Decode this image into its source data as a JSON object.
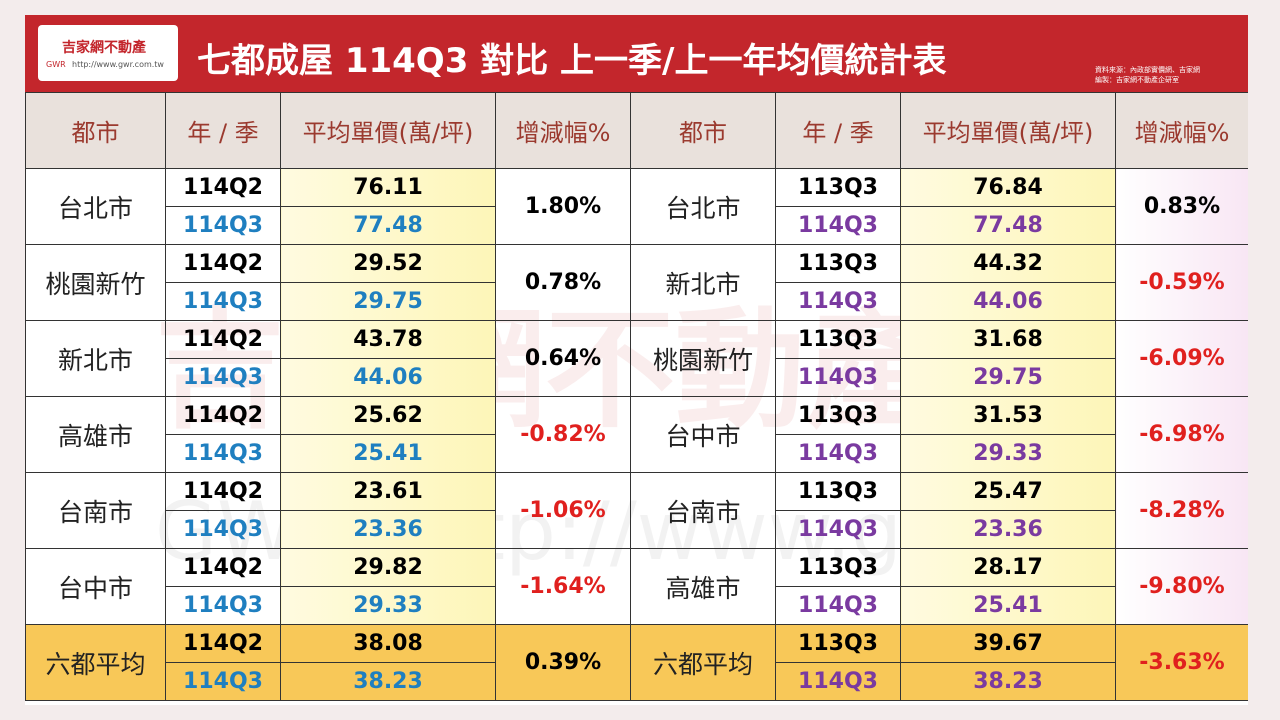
{
  "header": {
    "logo": {
      "name": "吉家網不動產",
      "mark": "GWR",
      "url": "http://www.gwr.com.tw"
    },
    "title": "七都成屋 114Q3 對比 上一季/上一年均價統計表",
    "source": [
      "資料來源：內政部實價網、吉家網",
      "編製：吉家網不動產企研室"
    ]
  },
  "watermark": {
    "name": "吉家網不動產",
    "mark": "GWR",
    "url": "http://www.gwr.com.tw"
  },
  "table": {
    "columns": [
      "都市",
      "年 / 季",
      "平均單價(萬/坪)",
      "增減幅%",
      "都市",
      "年 / 季",
      "平均單價(萬/坪)",
      "增減幅%"
    ],
    "rows": [
      {
        "left": {
          "city": "台北市",
          "periods": [
            "114Q2",
            "114Q3"
          ],
          "prices": [
            "76.11",
            "77.48"
          ],
          "change": "1.80%"
        },
        "right": {
          "city": "台北市",
          "periods": [
            "113Q3",
            "114Q3"
          ],
          "prices": [
            "76.84",
            "77.48"
          ],
          "change": "0.83%"
        }
      },
      {
        "left": {
          "city": "桃園新竹",
          "periods": [
            "114Q2",
            "114Q3"
          ],
          "prices": [
            "29.52",
            "29.75"
          ],
          "change": "0.78%"
        },
        "right": {
          "city": "新北市",
          "periods": [
            "113Q3",
            "114Q3"
          ],
          "prices": [
            "44.32",
            "44.06"
          ],
          "change": "-0.59%"
        }
      },
      {
        "left": {
          "city": "新北市",
          "periods": [
            "114Q2",
            "114Q3"
          ],
          "prices": [
            "43.78",
            "44.06"
          ],
          "change": "0.64%"
        },
        "right": {
          "city": "桃園新竹",
          "periods": [
            "113Q3",
            "114Q3"
          ],
          "prices": [
            "31.68",
            "29.75"
          ],
          "change": "-6.09%"
        }
      },
      {
        "left": {
          "city": "高雄市",
          "periods": [
            "114Q2",
            "114Q3"
          ],
          "prices": [
            "25.62",
            "25.41"
          ],
          "change": "-0.82%"
        },
        "right": {
          "city": "台中市",
          "periods": [
            "113Q3",
            "114Q3"
          ],
          "prices": [
            "31.53",
            "29.33"
          ],
          "change": "-6.98%"
        }
      },
      {
        "left": {
          "city": "台南市",
          "periods": [
            "114Q2",
            "114Q3"
          ],
          "prices": [
            "23.61",
            "23.36"
          ],
          "change": "-1.06%"
        },
        "right": {
          "city": "台南市",
          "periods": [
            "113Q3",
            "114Q3"
          ],
          "prices": [
            "25.47",
            "23.36"
          ],
          "change": "-8.28%"
        }
      },
      {
        "left": {
          "city": "台中市",
          "periods": [
            "114Q2",
            "114Q3"
          ],
          "prices": [
            "29.82",
            "29.33"
          ],
          "change": "-1.64%"
        },
        "right": {
          "city": "高雄市",
          "periods": [
            "113Q3",
            "114Q3"
          ],
          "prices": [
            "28.17",
            "25.41"
          ],
          "change": "-9.80%"
        }
      },
      {
        "left": {
          "city": "六都平均",
          "periods": [
            "114Q2",
            "114Q3"
          ],
          "prices": [
            "38.08",
            "38.23"
          ],
          "change": "0.39%"
        },
        "right": {
          "city": "六都平均",
          "periods": [
            "113Q3",
            "114Q3"
          ],
          "prices": [
            "39.67",
            "38.23"
          ],
          "change": "-3.63%"
        }
      }
    ]
  }
}
